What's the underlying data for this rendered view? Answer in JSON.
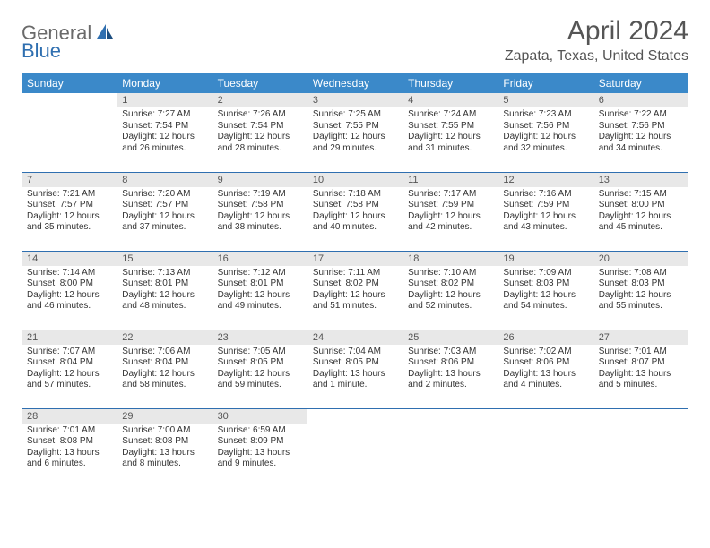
{
  "logo": {
    "general": "General",
    "blue": "Blue"
  },
  "title": "April 2024",
  "location": "Zapata, Texas, United States",
  "colors": {
    "header_bg": "#3b89c9",
    "header_text": "#ffffff",
    "daynum_bg": "#e8e8e8",
    "daynum_text": "#555555",
    "body_text": "#333333",
    "rule": "#2f6fb0",
    "logo_general": "#6a6a6a",
    "logo_blue": "#2f6fb0"
  },
  "weekdays": [
    "Sunday",
    "Monday",
    "Tuesday",
    "Wednesday",
    "Thursday",
    "Friday",
    "Saturday"
  ],
  "weeks": [
    [
      null,
      {
        "d": "1",
        "sr": "Sunrise: 7:27 AM",
        "ss": "Sunset: 7:54 PM",
        "dl1": "Daylight: 12 hours",
        "dl2": "and 26 minutes."
      },
      {
        "d": "2",
        "sr": "Sunrise: 7:26 AM",
        "ss": "Sunset: 7:54 PM",
        "dl1": "Daylight: 12 hours",
        "dl2": "and 28 minutes."
      },
      {
        "d": "3",
        "sr": "Sunrise: 7:25 AM",
        "ss": "Sunset: 7:55 PM",
        "dl1": "Daylight: 12 hours",
        "dl2": "and 29 minutes."
      },
      {
        "d": "4",
        "sr": "Sunrise: 7:24 AM",
        "ss": "Sunset: 7:55 PM",
        "dl1": "Daylight: 12 hours",
        "dl2": "and 31 minutes."
      },
      {
        "d": "5",
        "sr": "Sunrise: 7:23 AM",
        "ss": "Sunset: 7:56 PM",
        "dl1": "Daylight: 12 hours",
        "dl2": "and 32 minutes."
      },
      {
        "d": "6",
        "sr": "Sunrise: 7:22 AM",
        "ss": "Sunset: 7:56 PM",
        "dl1": "Daylight: 12 hours",
        "dl2": "and 34 minutes."
      }
    ],
    [
      {
        "d": "7",
        "sr": "Sunrise: 7:21 AM",
        "ss": "Sunset: 7:57 PM",
        "dl1": "Daylight: 12 hours",
        "dl2": "and 35 minutes."
      },
      {
        "d": "8",
        "sr": "Sunrise: 7:20 AM",
        "ss": "Sunset: 7:57 PM",
        "dl1": "Daylight: 12 hours",
        "dl2": "and 37 minutes."
      },
      {
        "d": "9",
        "sr": "Sunrise: 7:19 AM",
        "ss": "Sunset: 7:58 PM",
        "dl1": "Daylight: 12 hours",
        "dl2": "and 38 minutes."
      },
      {
        "d": "10",
        "sr": "Sunrise: 7:18 AM",
        "ss": "Sunset: 7:58 PM",
        "dl1": "Daylight: 12 hours",
        "dl2": "and 40 minutes."
      },
      {
        "d": "11",
        "sr": "Sunrise: 7:17 AM",
        "ss": "Sunset: 7:59 PM",
        "dl1": "Daylight: 12 hours",
        "dl2": "and 42 minutes."
      },
      {
        "d": "12",
        "sr": "Sunrise: 7:16 AM",
        "ss": "Sunset: 7:59 PM",
        "dl1": "Daylight: 12 hours",
        "dl2": "and 43 minutes."
      },
      {
        "d": "13",
        "sr": "Sunrise: 7:15 AM",
        "ss": "Sunset: 8:00 PM",
        "dl1": "Daylight: 12 hours",
        "dl2": "and 45 minutes."
      }
    ],
    [
      {
        "d": "14",
        "sr": "Sunrise: 7:14 AM",
        "ss": "Sunset: 8:00 PM",
        "dl1": "Daylight: 12 hours",
        "dl2": "and 46 minutes."
      },
      {
        "d": "15",
        "sr": "Sunrise: 7:13 AM",
        "ss": "Sunset: 8:01 PM",
        "dl1": "Daylight: 12 hours",
        "dl2": "and 48 minutes."
      },
      {
        "d": "16",
        "sr": "Sunrise: 7:12 AM",
        "ss": "Sunset: 8:01 PM",
        "dl1": "Daylight: 12 hours",
        "dl2": "and 49 minutes."
      },
      {
        "d": "17",
        "sr": "Sunrise: 7:11 AM",
        "ss": "Sunset: 8:02 PM",
        "dl1": "Daylight: 12 hours",
        "dl2": "and 51 minutes."
      },
      {
        "d": "18",
        "sr": "Sunrise: 7:10 AM",
        "ss": "Sunset: 8:02 PM",
        "dl1": "Daylight: 12 hours",
        "dl2": "and 52 minutes."
      },
      {
        "d": "19",
        "sr": "Sunrise: 7:09 AM",
        "ss": "Sunset: 8:03 PM",
        "dl1": "Daylight: 12 hours",
        "dl2": "and 54 minutes."
      },
      {
        "d": "20",
        "sr": "Sunrise: 7:08 AM",
        "ss": "Sunset: 8:03 PM",
        "dl1": "Daylight: 12 hours",
        "dl2": "and 55 minutes."
      }
    ],
    [
      {
        "d": "21",
        "sr": "Sunrise: 7:07 AM",
        "ss": "Sunset: 8:04 PM",
        "dl1": "Daylight: 12 hours",
        "dl2": "and 57 minutes."
      },
      {
        "d": "22",
        "sr": "Sunrise: 7:06 AM",
        "ss": "Sunset: 8:04 PM",
        "dl1": "Daylight: 12 hours",
        "dl2": "and 58 minutes."
      },
      {
        "d": "23",
        "sr": "Sunrise: 7:05 AM",
        "ss": "Sunset: 8:05 PM",
        "dl1": "Daylight: 12 hours",
        "dl2": "and 59 minutes."
      },
      {
        "d": "24",
        "sr": "Sunrise: 7:04 AM",
        "ss": "Sunset: 8:05 PM",
        "dl1": "Daylight: 13 hours",
        "dl2": "and 1 minute."
      },
      {
        "d": "25",
        "sr": "Sunrise: 7:03 AM",
        "ss": "Sunset: 8:06 PM",
        "dl1": "Daylight: 13 hours",
        "dl2": "and 2 minutes."
      },
      {
        "d": "26",
        "sr": "Sunrise: 7:02 AM",
        "ss": "Sunset: 8:06 PM",
        "dl1": "Daylight: 13 hours",
        "dl2": "and 4 minutes."
      },
      {
        "d": "27",
        "sr": "Sunrise: 7:01 AM",
        "ss": "Sunset: 8:07 PM",
        "dl1": "Daylight: 13 hours",
        "dl2": "and 5 minutes."
      }
    ],
    [
      {
        "d": "28",
        "sr": "Sunrise: 7:01 AM",
        "ss": "Sunset: 8:08 PM",
        "dl1": "Daylight: 13 hours",
        "dl2": "and 6 minutes."
      },
      {
        "d": "29",
        "sr": "Sunrise: 7:00 AM",
        "ss": "Sunset: 8:08 PM",
        "dl1": "Daylight: 13 hours",
        "dl2": "and 8 minutes."
      },
      {
        "d": "30",
        "sr": "Sunrise: 6:59 AM",
        "ss": "Sunset: 8:09 PM",
        "dl1": "Daylight: 13 hours",
        "dl2": "and 9 minutes."
      },
      null,
      null,
      null,
      null
    ]
  ]
}
